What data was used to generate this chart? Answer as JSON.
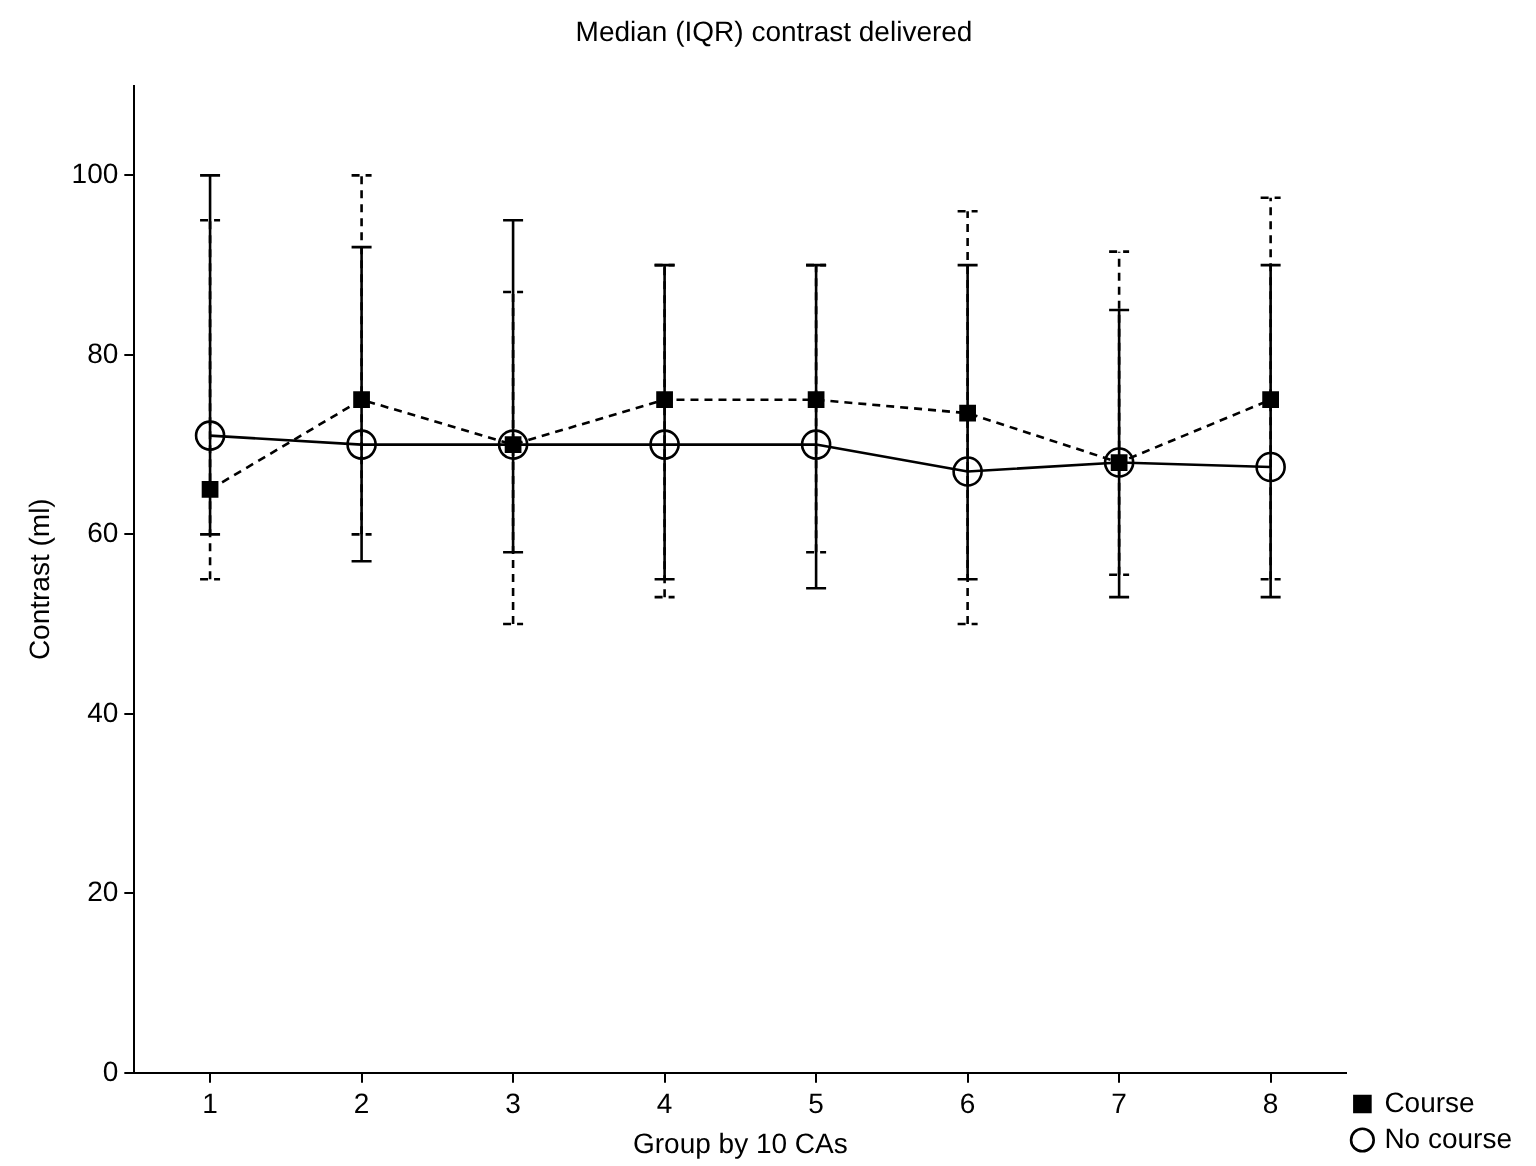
{
  "chart_data": {
    "type": "line",
    "title": "Median (IQR) contrast delivered",
    "xlabel": "Group by 10 CAs",
    "ylabel": "Contrast (ml)",
    "x": [
      1,
      2,
      3,
      4,
      5,
      6,
      7,
      8
    ],
    "xlim": [
      0.5,
      8.5
    ],
    "xticks": [
      1,
      2,
      3,
      4,
      5,
      6,
      7,
      8
    ],
    "ylim": [
      0,
      110
    ],
    "yticks": [
      0,
      20,
      40,
      60,
      80,
      100
    ],
    "grid": false,
    "legend": "bottom right",
    "series": [
      {
        "name": "Course",
        "color": "#000000",
        "marker": "square",
        "line_style": "dashed",
        "values": [
          65,
          75,
          70,
          75,
          75,
          73.5,
          68,
          75
        ],
        "errors": [
          [
            55,
            95
          ],
          [
            60,
            100
          ],
          [
            50,
            87
          ],
          [
            53,
            90
          ],
          [
            58,
            90
          ],
          [
            50,
            96
          ],
          [
            55.5,
            91.5
          ],
          [
            55,
            97.5
          ]
        ]
      },
      {
        "name": "No course",
        "color": "#000000",
        "marker": "circle",
        "line_style": "solid",
        "values": [
          71,
          70,
          70,
          70,
          70,
          67,
          68,
          67.5
        ],
        "errors": [
          [
            60,
            100
          ],
          [
            57,
            92
          ],
          [
            58,
            95
          ],
          [
            55,
            90
          ],
          [
            54,
            90
          ],
          [
            55,
            90
          ],
          [
            53,
            85
          ],
          [
            53,
            90
          ]
        ]
      }
    ]
  }
}
